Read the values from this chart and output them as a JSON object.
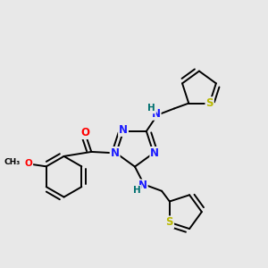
{
  "background_color": "#e8e8e8",
  "figsize": [
    3.0,
    3.0
  ],
  "dpi": 100,
  "atom_colors": {
    "C": "#000000",
    "N": "#1a1aff",
    "O": "#ff0000",
    "S": "#b8b800",
    "H": "#007070"
  },
  "bond_color": "#000000",
  "bond_width": 1.4,
  "font_size_atom": 8.5,
  "font_size_H": 7.5,
  "font_size_small": 7.5
}
